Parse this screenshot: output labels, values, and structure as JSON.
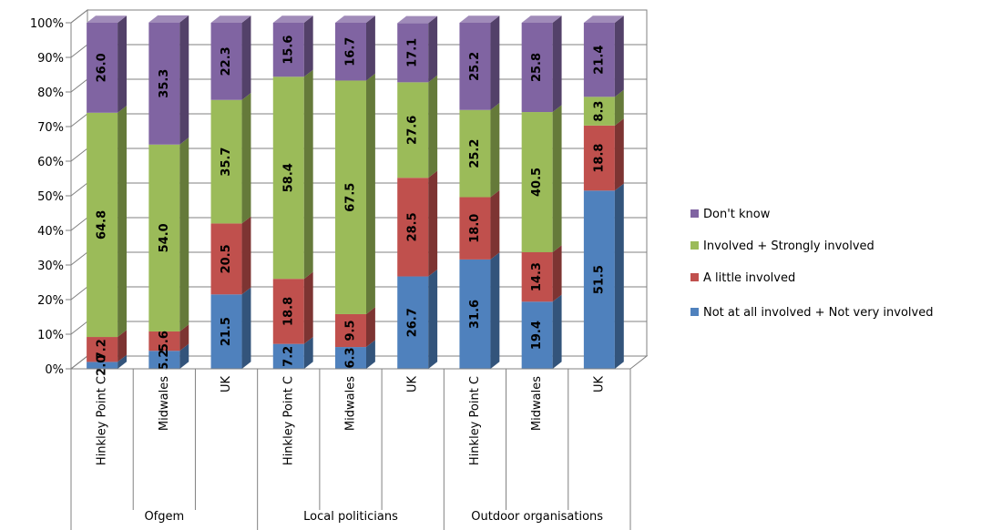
{
  "chart_data": {
    "type": "bar",
    "stacked": true,
    "three_d": true,
    "ylim": [
      0,
      100
    ],
    "y_ticks": [
      "0%",
      "10%",
      "20%",
      "30%",
      "40%",
      "50%",
      "60%",
      "70%",
      "80%",
      "90%",
      "100%"
    ],
    "grid": true,
    "legend_position": "right",
    "categories": [
      "Hinkley Point C",
      "Midwales",
      "UK",
      "Hinkley Point C",
      "Midwales",
      "UK",
      "Hinkley Point C",
      "Midwales",
      "UK"
    ],
    "groups": [
      {
        "label": "Ofgem",
        "span": 3
      },
      {
        "label": "Local politicians",
        "span": 3
      },
      {
        "label": "Outdoor organisations",
        "span": 3
      }
    ],
    "series": [
      {
        "name": "Not at all involved + Not very involved",
        "color": "#4F81BD",
        "values": [
          2.0,
          5.2,
          21.5,
          7.2,
          6.3,
          26.7,
          31.6,
          19.4,
          51.5
        ]
      },
      {
        "name": "A little involved",
        "color": "#C0504D",
        "values": [
          7.2,
          5.6,
          20.5,
          18.8,
          9.5,
          28.5,
          18.0,
          14.3,
          18.8
        ]
      },
      {
        "name": "Involved + Strongly involved",
        "color": "#9BBB59",
        "values": [
          64.8,
          54.0,
          35.7,
          58.4,
          67.5,
          27.6,
          25.2,
          40.5,
          8.3
        ]
      },
      {
        "name": "Don't know",
        "color": "#8064A2",
        "values": [
          26.0,
          35.3,
          22.3,
          15.6,
          16.7,
          17.1,
          25.2,
          25.8,
          21.4
        ]
      }
    ],
    "legend_order": [
      "Don't know",
      "Involved + Strongly involved",
      "A little involved",
      "Not at all involved + Not very involved"
    ]
  }
}
